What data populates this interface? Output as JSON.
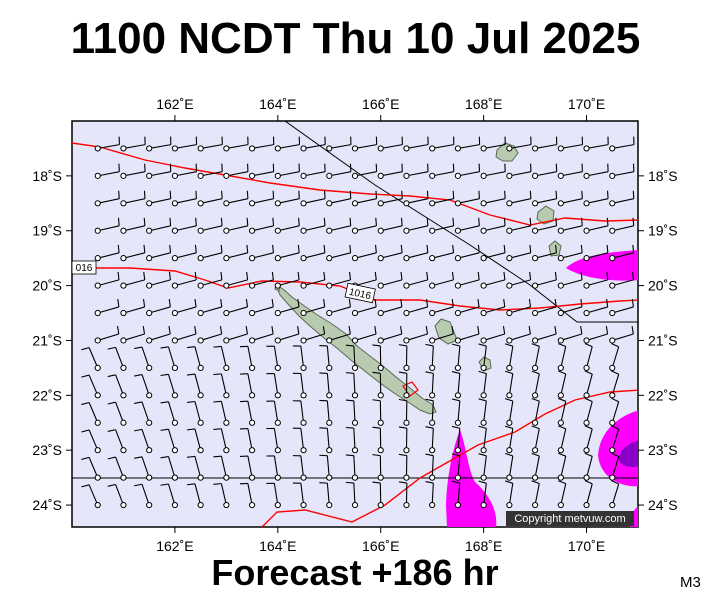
{
  "title": "1100 NCDT Thu 10 Jul 2025",
  "footer": "Forecast +186 hr",
  "model_tag": "M3",
  "copyright": "Copyright metvuw.com",
  "map": {
    "lon_range": [
      160.0,
      171.0
    ],
    "lat_range": [
      -24.4,
      -17.0
    ],
    "lon_ticks": [
      "162˚E",
      "164˚E",
      "166˚E",
      "168˚E",
      "170˚E"
    ],
    "lat_ticks": [
      "18˚S",
      "19˚S",
      "20˚S",
      "21˚S",
      "22˚S",
      "23˚S",
      "24˚S"
    ],
    "isobar_labels": [
      "1016",
      "016"
    ],
    "colors": {
      "ocean": "#e6e6fa",
      "isobar": "#ff0000",
      "rain": "#ff00ff",
      "rain_dark": "#8b00c8",
      "land": "#b8cbb0",
      "wind": "#000000"
    }
  }
}
